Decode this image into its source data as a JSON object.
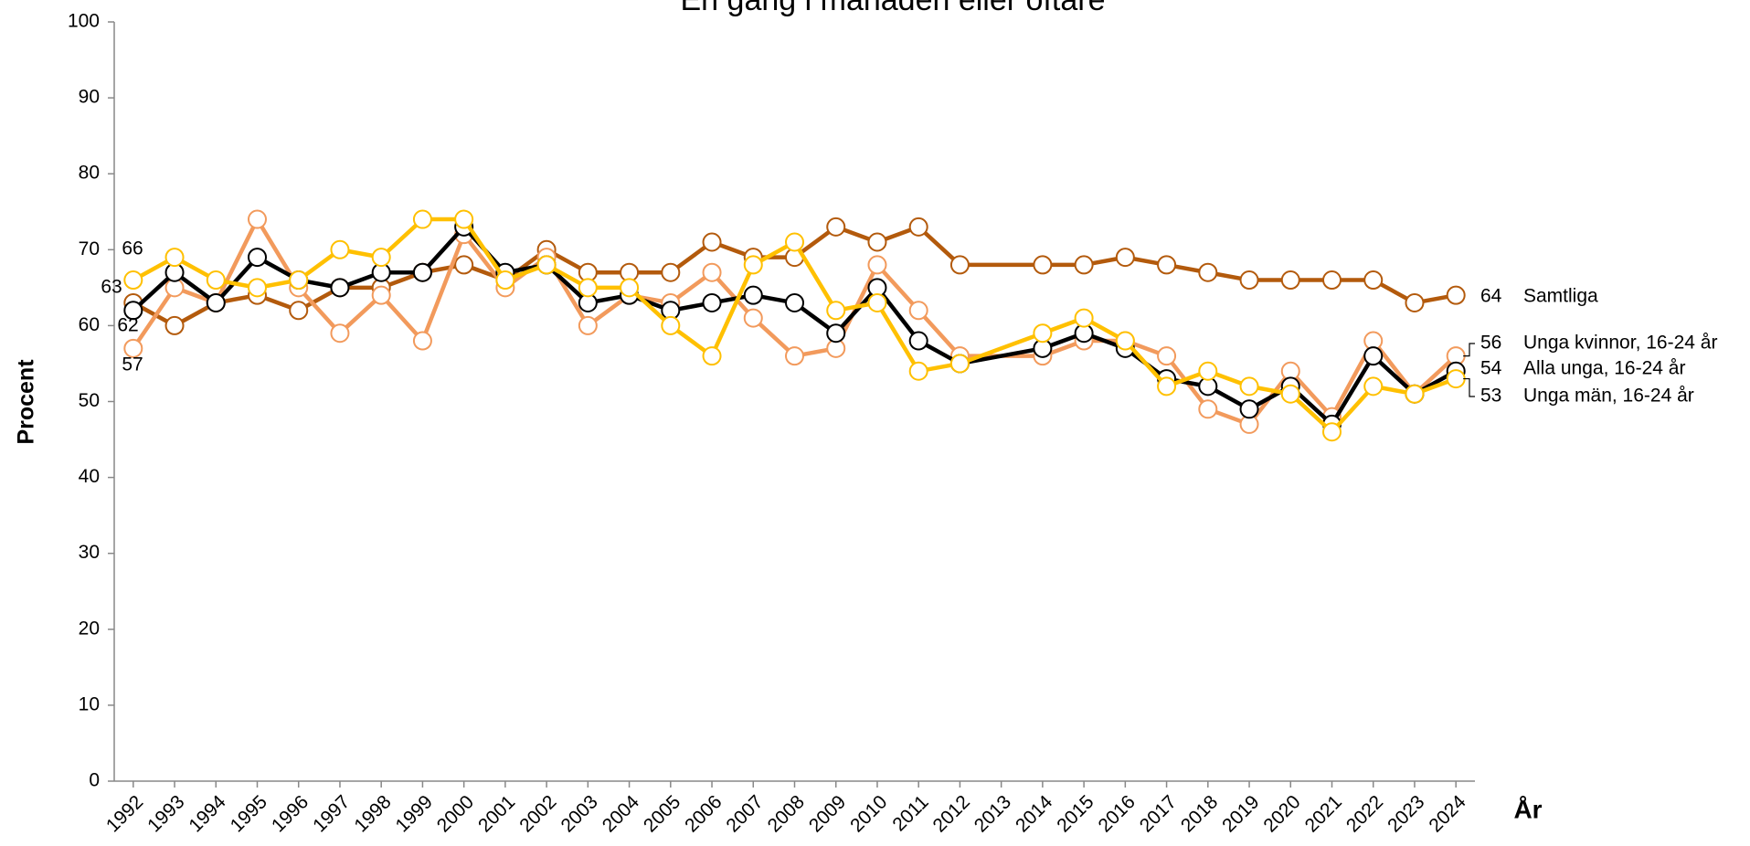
{
  "chart_data": {
    "type": "line",
    "title": "En gång i månaden eller oftare",
    "y_label": "Procent",
    "x_label": "År",
    "x": [
      1992,
      1993,
      1994,
      1995,
      1996,
      1997,
      1998,
      1999,
      2000,
      2001,
      2002,
      2003,
      2004,
      2005,
      2006,
      2007,
      2008,
      2009,
      2010,
      2011,
      2012,
      2014,
      2015,
      2016,
      2017,
      2018,
      2019,
      2020,
      2021,
      2022,
      2023,
      2024
    ],
    "xlim": [
      1991.54,
      2024.46
    ],
    "xticks": [
      1992,
      1993,
      1994,
      1995,
      1996,
      1997,
      1998,
      1999,
      2000,
      2001,
      2002,
      2003,
      2004,
      2005,
      2006,
      2007,
      2008,
      2009,
      2010,
      2011,
      2012,
      2013,
      2014,
      2015,
      2016,
      2017,
      2018,
      2019,
      2020,
      2021,
      2022,
      2023,
      2024
    ],
    "ylim": [
      0,
      100
    ],
    "yticks": [
      0,
      10,
      20,
      30,
      40,
      50,
      60,
      70,
      80,
      90,
      100
    ],
    "grid": false,
    "series": [
      {
        "name": "Samtliga",
        "color": "#b35a0c",
        "values": [
          63,
          60,
          63,
          64,
          62,
          65,
          65,
          67,
          68,
          66,
          70,
          67,
          67,
          67,
          71,
          69,
          69,
          73,
          71,
          73,
          68,
          68,
          68,
          69,
          68,
          67,
          66,
          66,
          66,
          66,
          63,
          64
        ]
      },
      {
        "name": "Alla unga, 16-24 år",
        "color": "#000000",
        "values": [
          62,
          67,
          63,
          69,
          66,
          65,
          67,
          67,
          73,
          67,
          68,
          63,
          64,
          62,
          63,
          64,
          63,
          59,
          65,
          58,
          55,
          57,
          59,
          57,
          53,
          52,
          49,
          52,
          47,
          56,
          51,
          54
        ]
      },
      {
        "name": "Unga kvinnor, 16-24 år",
        "color": "#f29a5c",
        "values": [
          57,
          65,
          63,
          74,
          65,
          59,
          64,
          58,
          72,
          65,
          69,
          60,
          64,
          63,
          67,
          61,
          56,
          57,
          68,
          62,
          56,
          56,
          58,
          58,
          56,
          49,
          47,
          54,
          48,
          58,
          51,
          56
        ]
      },
      {
        "name": "Unga män, 16-24 år",
        "color": "#ffc000",
        "values": [
          66,
          69,
          66,
          65,
          66,
          70,
          69,
          74,
          74,
          66,
          68,
          65,
          65,
          60,
          56,
          68,
          71,
          62,
          63,
          54,
          55,
          59,
          61,
          58,
          52,
          54,
          52,
          51,
          46,
          52,
          51,
          53
        ]
      }
    ]
  }
}
